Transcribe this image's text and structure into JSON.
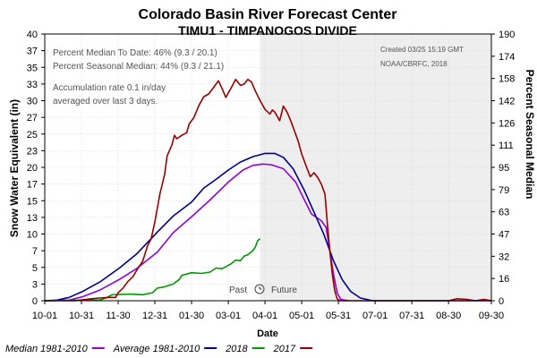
{
  "chart_data": {
    "type": "line",
    "title": "Colorado Basin River Forecast Center",
    "subtitle": "TIMU1 - TIMPANOGOS DIVIDE",
    "ylabel": "Snow Water Equivalent (in)",
    "y2label": "Percent Seasonal Median",
    "xlabel": "Date",
    "ylim": [
      0,
      40
    ],
    "y2lim": [
      0,
      190
    ],
    "yticks": [
      "0",
      "3",
      "5",
      "7",
      "10",
      "13",
      "15",
      "17",
      "20",
      "23",
      "25",
      "27",
      "30",
      "33",
      "35",
      "37",
      "40"
    ],
    "y2ticks": [
      "0",
      "16",
      "32",
      "47",
      "63",
      "79",
      "95",
      "111",
      "126",
      "142",
      "158",
      "174",
      "190"
    ],
    "xticks": [
      "10-01",
      "10-31",
      "11-30",
      "12-31",
      "01-30",
      "03-01",
      "04-01",
      "05-01",
      "05-31",
      "07-01",
      "07-31",
      "08-30",
      "09-30"
    ],
    "x_unit": "days since Oct 1",
    "today_day": 176,
    "grid": true,
    "past_label": "Past",
    "future_label": "Future",
    "annotations": {
      "stats_line1": "Percent Median To Date: 46% (9.3 / 20.1)",
      "stats_line2": "Percent Seasonal Median: 44% (9.3 / 21.1)",
      "rate_line1": "Accumulation rate 0.1 in/day",
      "rate_line2": "averaged over last 3 days.",
      "created": "Created 03/25 15:19 GMT",
      "source": "NOAA/CBRFC, 2018"
    },
    "legend_position": "bottom",
    "series": [
      {
        "name": "Median 1981-2010",
        "color": "#9400d3",
        "points": [
          [
            0,
            0
          ],
          [
            20,
            0.1
          ],
          [
            31,
            0.6
          ],
          [
            45,
            1.6
          ],
          [
            61,
            3.2
          ],
          [
            75,
            4.8
          ],
          [
            92,
            7.3
          ],
          [
            105,
            10.2
          ],
          [
            120,
            12.6
          ],
          [
            135,
            15.1
          ],
          [
            150,
            17.8
          ],
          [
            162,
            19.6
          ],
          [
            170,
            20.3
          ],
          [
            178,
            20.5
          ],
          [
            185,
            20.4
          ],
          [
            195,
            19.8
          ],
          [
            205,
            17.8
          ],
          [
            212,
            15.2
          ],
          [
            218,
            13.0
          ],
          [
            226,
            12.0
          ],
          [
            230,
            11.0
          ],
          [
            233,
            7.5
          ],
          [
            236,
            4.0
          ],
          [
            239,
            1.2
          ],
          [
            242,
            0.2
          ],
          [
            248,
            0
          ]
        ]
      },
      {
        "name": "Average 1981-2010",
        "color": "#00008b",
        "points": [
          [
            0,
            0
          ],
          [
            10,
            0.1
          ],
          [
            20,
            0.5
          ],
          [
            31,
            1.4
          ],
          [
            45,
            2.8
          ],
          [
            61,
            4.9
          ],
          [
            75,
            7.0
          ],
          [
            92,
            10.3
          ],
          [
            105,
            12.7
          ],
          [
            120,
            14.8
          ],
          [
            130,
            16.9
          ],
          [
            140,
            18.2
          ],
          [
            150,
            19.6
          ],
          [
            160,
            20.8
          ],
          [
            170,
            21.6
          ],
          [
            180,
            22.1
          ],
          [
            188,
            22.1
          ],
          [
            195,
            21.5
          ],
          [
            203,
            19.8
          ],
          [
            212,
            16.6
          ],
          [
            220,
            13.3
          ],
          [
            228,
            10.0
          ],
          [
            236,
            6.0
          ],
          [
            243,
            3.2
          ],
          [
            250,
            1.4
          ],
          [
            258,
            0.4
          ],
          [
            268,
            0
          ],
          [
            365,
            0
          ]
        ]
      },
      {
        "name": "2018",
        "color": "#009900",
        "points": [
          [
            0,
            0
          ],
          [
            31,
            0.1
          ],
          [
            45,
            0.1
          ],
          [
            50,
            0.4
          ],
          [
            55,
            0.9
          ],
          [
            70,
            1.0
          ],
          [
            80,
            0.9
          ],
          [
            88,
            1.2
          ],
          [
            92,
            1.9
          ],
          [
            96,
            2.0
          ],
          [
            105,
            2.5
          ],
          [
            110,
            3.2
          ],
          [
            112,
            3.8
          ],
          [
            120,
            4.2
          ],
          [
            128,
            4.1
          ],
          [
            135,
            4.3
          ],
          [
            140,
            4.9
          ],
          [
            145,
            4.8
          ],
          [
            152,
            5.5
          ],
          [
            156,
            6.1
          ],
          [
            160,
            6.0
          ],
          [
            163,
            6.7
          ],
          [
            166,
            6.9
          ],
          [
            170,
            7.5
          ],
          [
            172,
            8.0
          ],
          [
            174,
            9.0
          ],
          [
            176,
            9.3
          ]
        ]
      },
      {
        "name": "2017",
        "color": "#990000",
        "points": [
          [
            0,
            0
          ],
          [
            25,
            0
          ],
          [
            38,
            0.3
          ],
          [
            45,
            0.4
          ],
          [
            52,
            0.5
          ],
          [
            58,
            0.5
          ],
          [
            60,
            1.2
          ],
          [
            64,
            1.9
          ],
          [
            68,
            2.9
          ],
          [
            72,
            3.6
          ],
          [
            76,
            4.8
          ],
          [
            80,
            5.9
          ],
          [
            84,
            8.2
          ],
          [
            87,
            9.3
          ],
          [
            90,
            11.8
          ],
          [
            94,
            15.9
          ],
          [
            98,
            19.0
          ],
          [
            100,
            21.7
          ],
          [
            104,
            23.4
          ],
          [
            106,
            24.8
          ],
          [
            108,
            24.3
          ],
          [
            112,
            24.8
          ],
          [
            116,
            25.2
          ],
          [
            118,
            26.5
          ],
          [
            122,
            27.5
          ],
          [
            126,
            29.3
          ],
          [
            130,
            30.6
          ],
          [
            134,
            31.0
          ],
          [
            138,
            32.0
          ],
          [
            142,
            33.0
          ],
          [
            145,
            31.8
          ],
          [
            148,
            30.5
          ],
          [
            152,
            31.8
          ],
          [
            156,
            33.2
          ],
          [
            160,
            32.3
          ],
          [
            163,
            32.5
          ],
          [
            166,
            33.2
          ],
          [
            169,
            32.8
          ],
          [
            172,
            31.5
          ],
          [
            176,
            30.0
          ],
          [
            180,
            28.7
          ],
          [
            184,
            28.0
          ],
          [
            186,
            28.6
          ],
          [
            188,
            28.3
          ],
          [
            192,
            27.0
          ],
          [
            195,
            29.2
          ],
          [
            198,
            28.3
          ],
          [
            201,
            27.0
          ],
          [
            204,
            25.5
          ],
          [
            207,
            24.0
          ],
          [
            210,
            22.0
          ],
          [
            214,
            20.0
          ],
          [
            217,
            18.6
          ],
          [
            220,
            19.2
          ],
          [
            223,
            18.5
          ],
          [
            226,
            17.5
          ],
          [
            229,
            16.0
          ],
          [
            231,
            11.5
          ],
          [
            233,
            7.5
          ],
          [
            235,
            4.0
          ],
          [
            237,
            1.5
          ],
          [
            239,
            0.3
          ],
          [
            241,
            0
          ],
          [
            330,
            0
          ],
          [
            337,
            0.3
          ],
          [
            345,
            0.2
          ],
          [
            352,
            0
          ],
          [
            359,
            0.2
          ],
          [
            365,
            0
          ]
        ]
      }
    ]
  }
}
